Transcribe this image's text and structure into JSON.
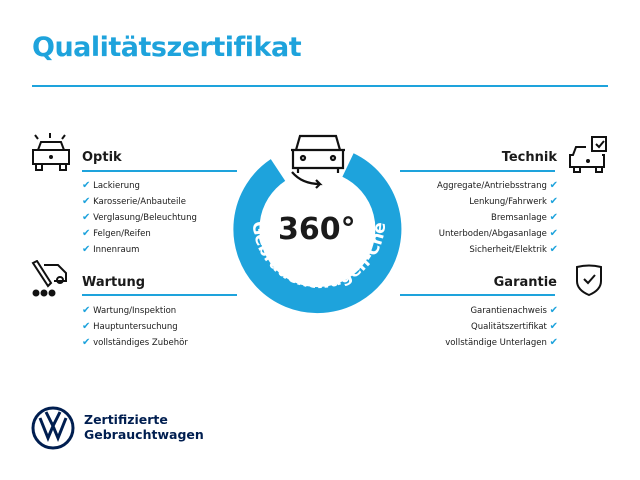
{
  "title": "Qualitätszertifikat",
  "check_glyph": "✔",
  "accent": "#1ea3dc",
  "center": {
    "number": "360°",
    "arc_text": "Gebrauchtwagen-Check"
  },
  "optik": {
    "heading": "Optik",
    "icon": "car-lights-icon",
    "items": [
      "Lackierung",
      "Karosserie/Anbauteile",
      "Verglasung/Beleuchtung",
      "Felgen/Reifen",
      "Innenraum"
    ]
  },
  "wartung": {
    "heading": "Wartung",
    "icon": "service-tools-icon",
    "items": [
      "Wartung/Inspektion",
      "Hauptuntersuchung",
      "vollständiges Zubehör"
    ]
  },
  "technik": {
    "heading": "Technik",
    "icon": "car-checklist-icon",
    "items": [
      "Aggregate/Antriebsstrang",
      "Lenkung/Fahrwerk",
      "Bremsanlage",
      "Unterboden/Abgasanlage",
      "Sicherheit/Elektrik"
    ]
  },
  "garantie": {
    "heading": "Garantie",
    "icon": "shield-check-icon",
    "items": [
      "Garantienachweis",
      "Qualitätszertifikat",
      "vollständige Unterlagen"
    ]
  },
  "brand": {
    "line1": "Zertifizierte",
    "line2": "Gebrauchtwagen"
  }
}
